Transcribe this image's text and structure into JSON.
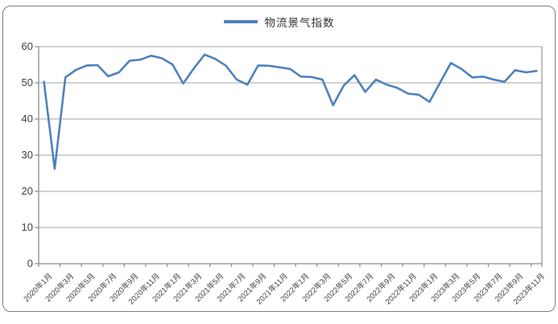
{
  "legend": {
    "label": "物流景气指数"
  },
  "chart_data": {
    "type": "line",
    "title": "",
    "xlabel": "",
    "ylabel": "",
    "ylim": [
      0,
      60
    ],
    "ytick_interval": 10,
    "ytick_labels": [
      "0",
      "10",
      "20",
      "30",
      "40",
      "50",
      "60"
    ],
    "xtick_label_every": 2,
    "grid": true,
    "legend_position": "top-center",
    "x": [
      "2020年1月",
      "2020年2月",
      "2020年3月",
      "2020年4月",
      "2020年5月",
      "2020年6月",
      "2020年7月",
      "2020年8月",
      "2020年9月",
      "2020年10月",
      "2020年11月",
      "2020年12月",
      "2021年1月",
      "2021年2月",
      "2021年3月",
      "2021年4月",
      "2021年5月",
      "2021年6月",
      "2021年7月",
      "2021年8月",
      "2021年9月",
      "2021年10月",
      "2021年11月",
      "2021年12月",
      "2022年1月",
      "2022年2月",
      "2022年3月",
      "2022年4月",
      "2022年5月",
      "2022年6月",
      "2022年7月",
      "2022年8月",
      "2022年9月",
      "2022年10月",
      "2022年11月",
      "2022年12月",
      "2023年1月",
      "2023年2月",
      "2023年3月",
      "2023年4月",
      "2023年5月",
      "2023年6月",
      "2023年7月",
      "2023年8月",
      "2023年9月",
      "2023年10月",
      "2023年11月"
    ],
    "series": [
      {
        "name": "物流景气指数",
        "values": [
          50.3,
          26.2,
          51.5,
          53.6,
          54.8,
          54.9,
          51.8,
          52.9,
          56.1,
          56.4,
          57.5,
          56.8,
          55.1,
          49.8,
          54.0,
          57.8,
          56.6,
          54.7,
          50.9,
          49.5,
          54.8,
          54.7,
          54.3,
          53.8,
          51.7,
          51.6,
          50.9,
          43.8,
          49.3,
          52.1,
          47.5,
          50.9,
          49.5,
          48.6,
          47.0,
          46.7,
          44.7,
          50.1,
          55.5,
          53.8,
          51.5,
          51.7,
          50.9,
          50.3,
          53.5,
          52.9,
          53.3
        ]
      }
    ],
    "colors": {
      "line": "#4F81BD",
      "grid": "#A3A3A3",
      "axis": "#8C8C8C",
      "text": "#3F3F3F",
      "frame_border": "#7F7F7F"
    }
  }
}
